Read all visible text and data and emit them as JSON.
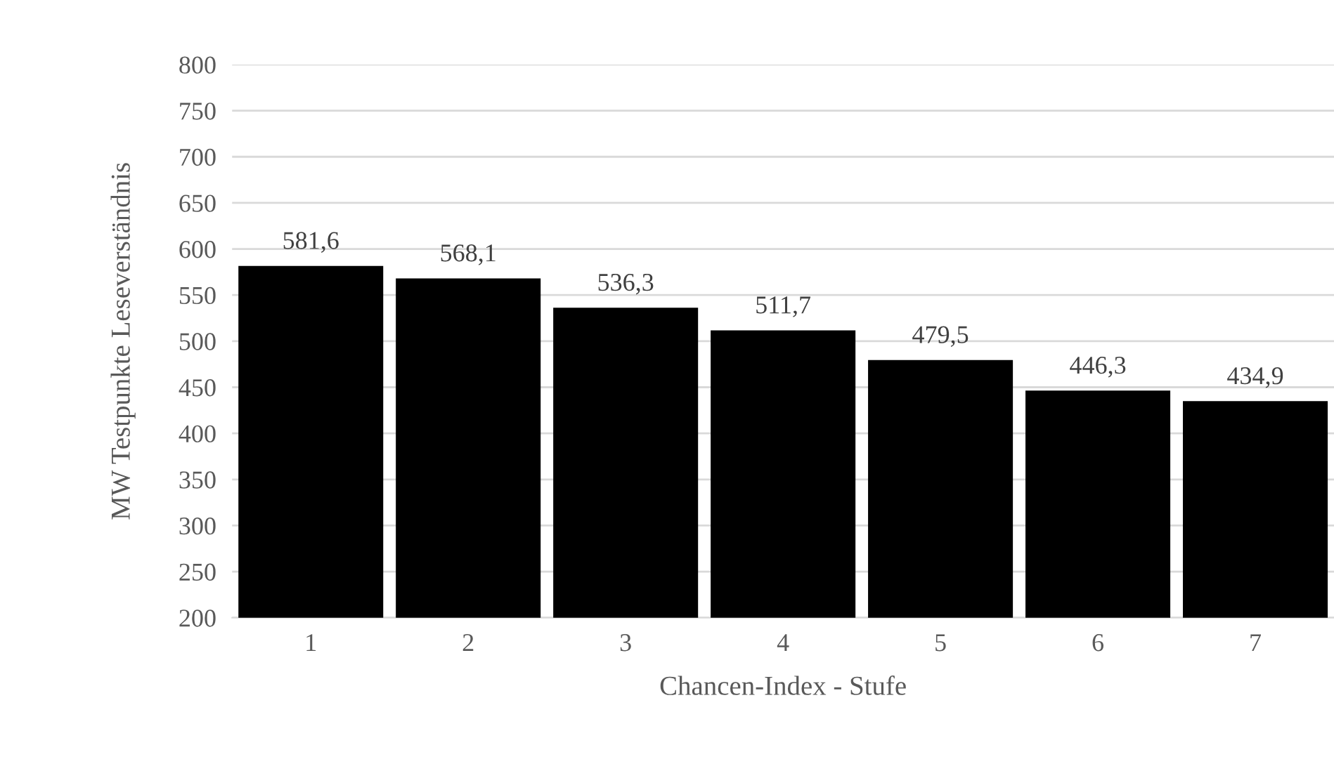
{
  "chart_data": {
    "type": "bar",
    "xlabel": "Chancen-Index - Stufe",
    "ylabel": "MW Testpunkte Leseverständnis",
    "categories": [
      "1",
      "2",
      "3",
      "4",
      "5",
      "6",
      "7"
    ],
    "values": [
      581.6,
      568.1,
      536.3,
      511.7,
      479.5,
      446.3,
      434.9
    ],
    "value_labels": [
      "581,6",
      "568,1",
      "536,3",
      "511,7",
      "479,5",
      "446,3",
      "434,9"
    ],
    "color": "#000000",
    "ylim": [
      200,
      800
    ],
    "yticks": [
      200,
      250,
      300,
      350,
      400,
      450,
      500,
      550,
      600,
      650,
      700,
      750,
      800
    ],
    "grid": "y"
  }
}
